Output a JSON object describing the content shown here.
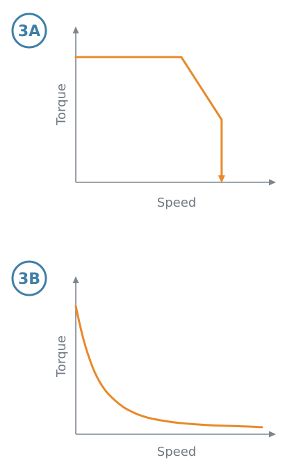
{
  "colors": {
    "badge": "#3f7fa8",
    "axis": "#7d868f",
    "curve": "#e8892a"
  },
  "chart_data": [
    {
      "id": "3A",
      "type": "line",
      "badge": "3A",
      "title": "",
      "xlabel": "Speed",
      "ylabel": "Torque",
      "xlim": [
        0,
        100
      ],
      "ylim": [
        0,
        100
      ],
      "x_ticks_shown": false,
      "y_ticks_shown": false,
      "grid": false,
      "series": [
        {
          "x": [
            0,
            55,
            76,
            76
          ],
          "y": [
            100,
            100,
            50,
            0
          ]
        }
      ],
      "arrow_at_end": true
    },
    {
      "id": "3B",
      "type": "line",
      "badge": "3B",
      "title": "",
      "xlabel": "Speed",
      "ylabel": "Torque",
      "xlim": [
        0,
        100
      ],
      "ylim": [
        0,
        100
      ],
      "x_ticks_shown": false,
      "y_ticks_shown": false,
      "grid": false,
      "series": [
        {
          "x": [
            0,
            3,
            6,
            10,
            15,
            20,
            25,
            30,
            35,
            40,
            50,
            60,
            70,
            80,
            90,
            97
          ],
          "y": [
            100,
            80,
            64,
            48,
            35,
            27,
            21,
            17,
            14,
            12,
            9.5,
            8,
            7,
            6.5,
            6,
            5.5
          ]
        }
      ],
      "arrow_at_end": false
    }
  ]
}
